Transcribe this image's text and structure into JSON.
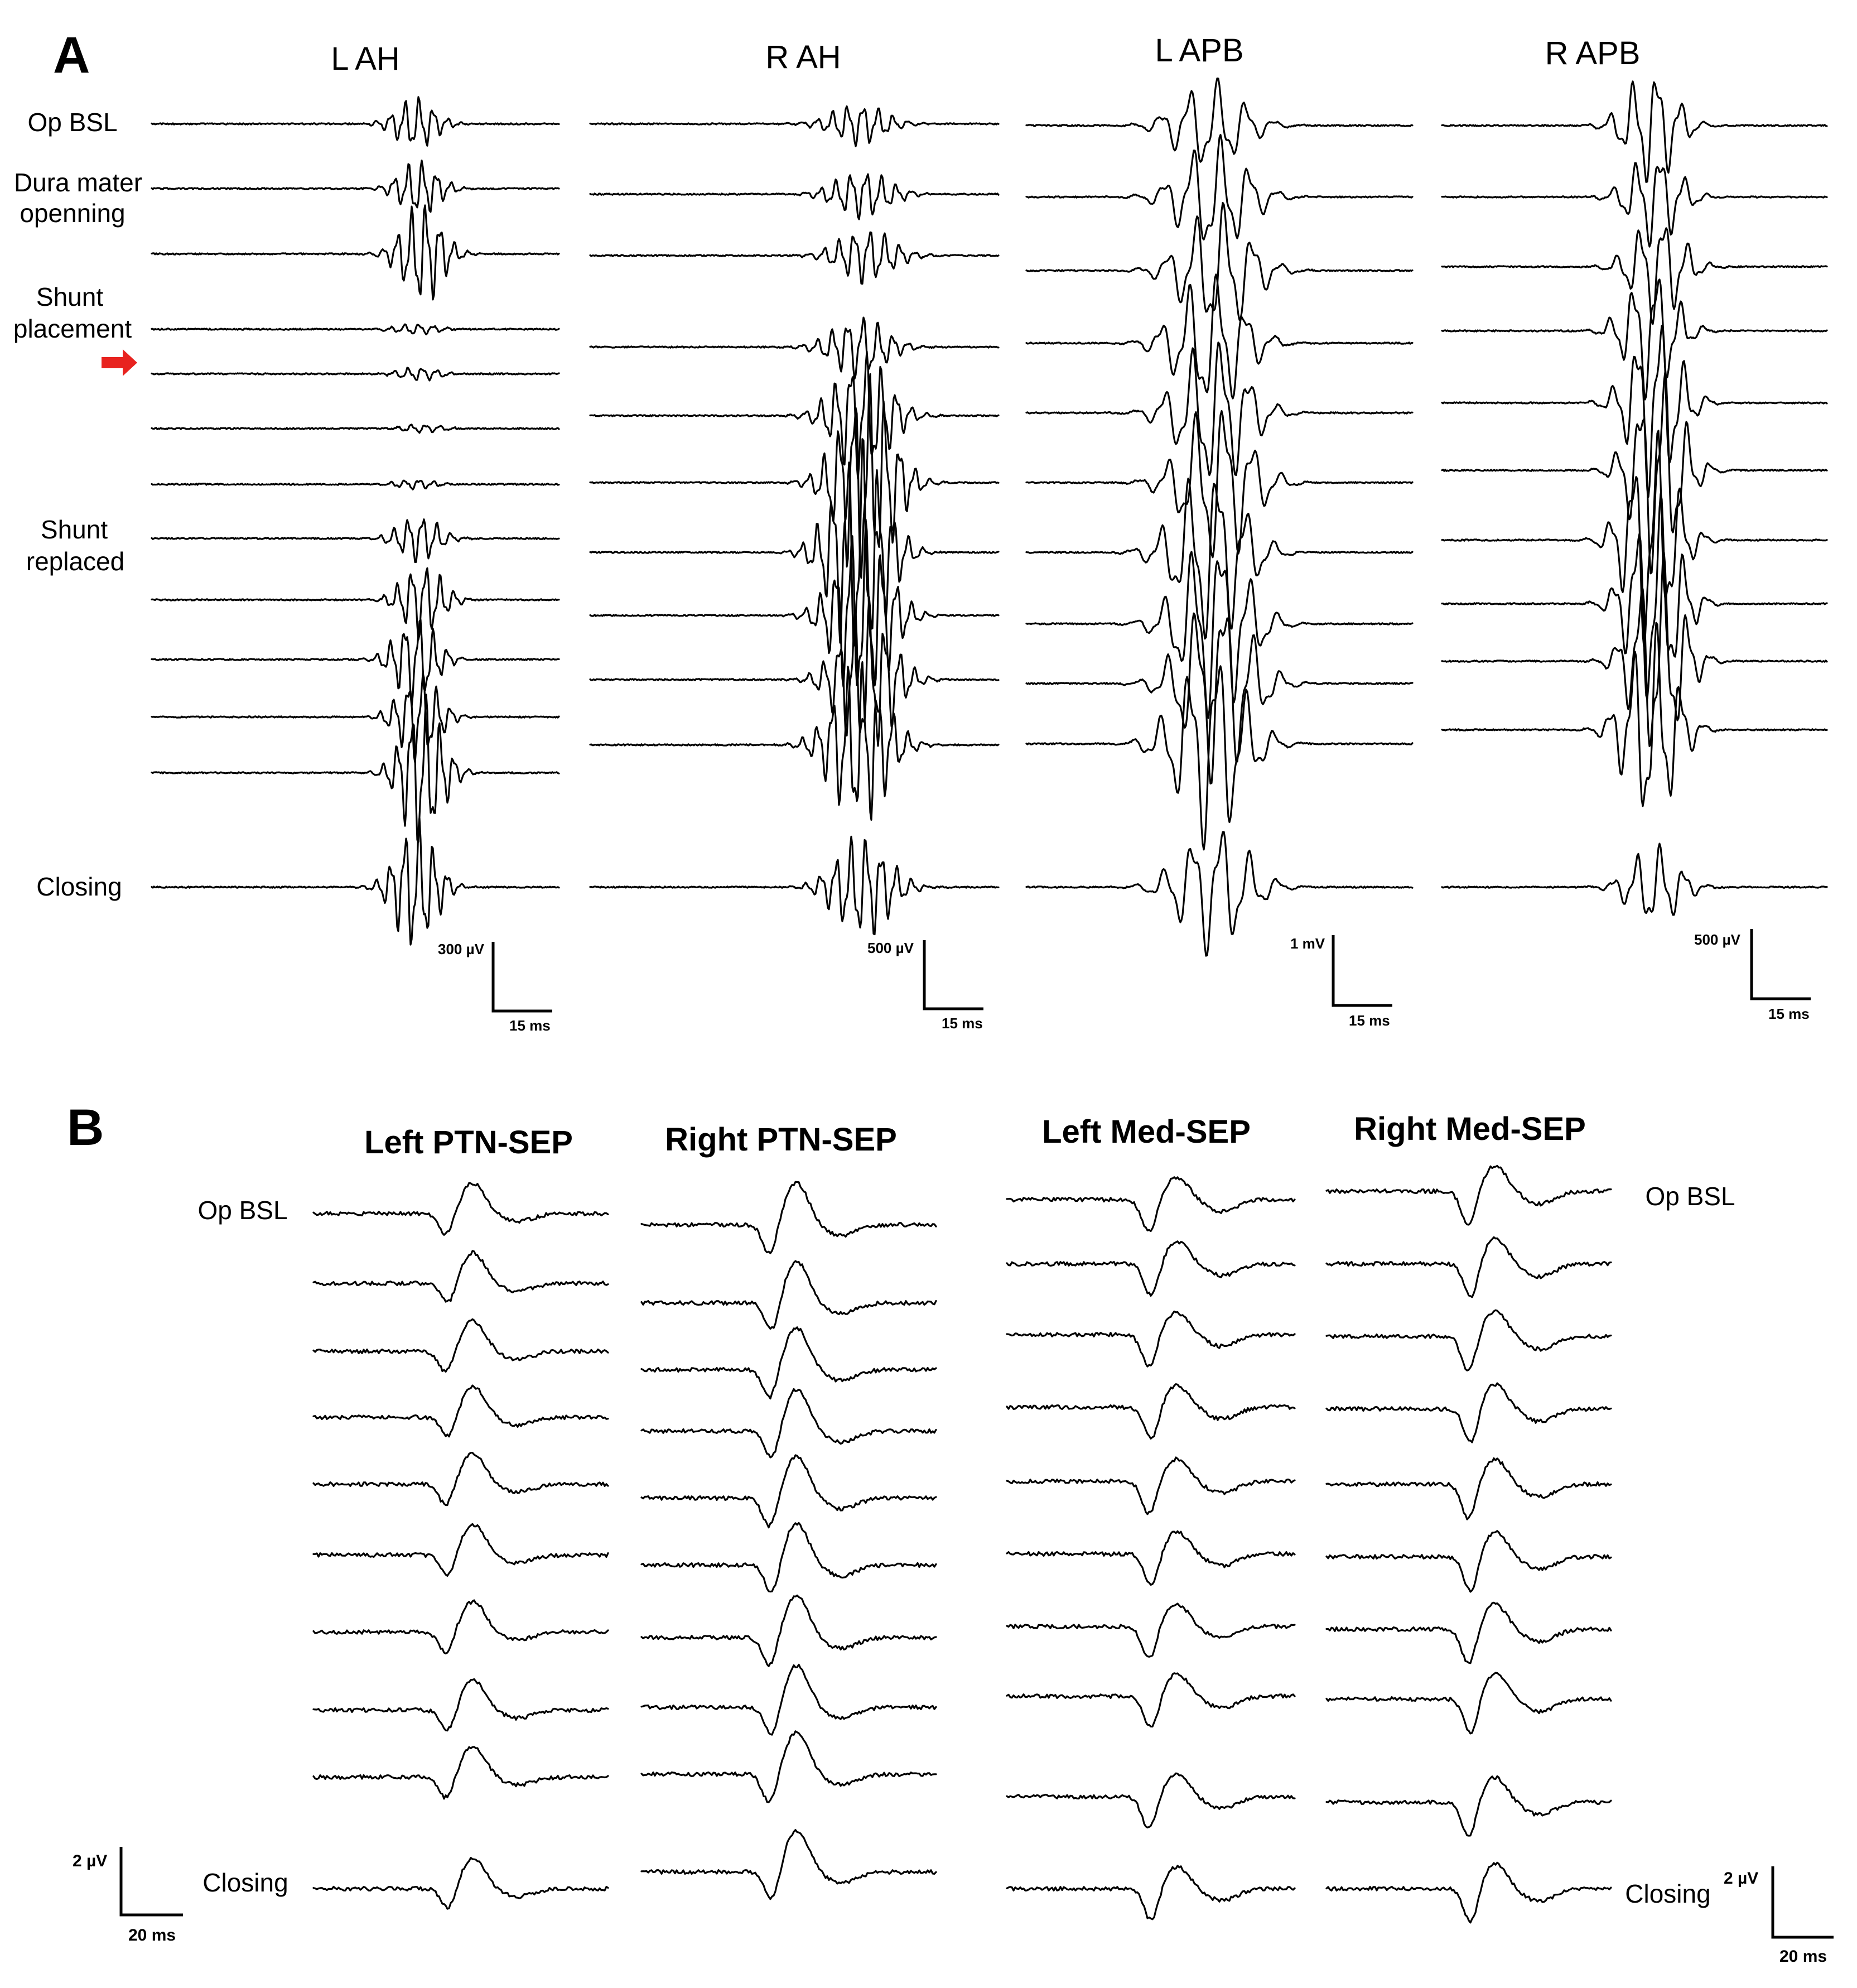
{
  "panel_a": {
    "letter": "A",
    "columns": [
      {
        "title": "L AH",
        "scale_amplitude": "300 µV",
        "scale_time": "15 ms"
      },
      {
        "title": "R AH",
        "scale_amplitude": "500 µV",
        "scale_time": "15 ms"
      },
      {
        "title": "L APB",
        "scale_amplitude": "1 mV",
        "scale_time": "15 ms"
      },
      {
        "title": "R APB",
        "scale_amplitude": "500 µV",
        "scale_time": "15 ms"
      }
    ],
    "row_labels": {
      "op_bsl": "Op BSL",
      "dura_line1": "Dura mater",
      "dura_line2": "openning",
      "shunt_line1": "Shunt",
      "shunt_line2": "placement",
      "replaced_line1": "Shunt",
      "replaced_line2": "replaced",
      "closing": "Closing"
    },
    "marker_color": "#e8231f"
  },
  "panel_b": {
    "letter": "B",
    "columns": [
      {
        "title": "Left PTN-SEP"
      },
      {
        "title": "Right PTN-SEP"
      },
      {
        "title": "Left Med-SEP"
      },
      {
        "title": "Right Med-SEP"
      }
    ],
    "row_labels": {
      "left_op_bsl": "Op BSL",
      "left_closing": "Closing",
      "right_op_bsl": "Op BSL",
      "right_closing": "Closing"
    },
    "scale_left": {
      "amplitude": "2 µV",
      "time": "20 ms"
    },
    "scale_right": {
      "amplitude": "2 µV",
      "time": "20 ms"
    }
  }
}
